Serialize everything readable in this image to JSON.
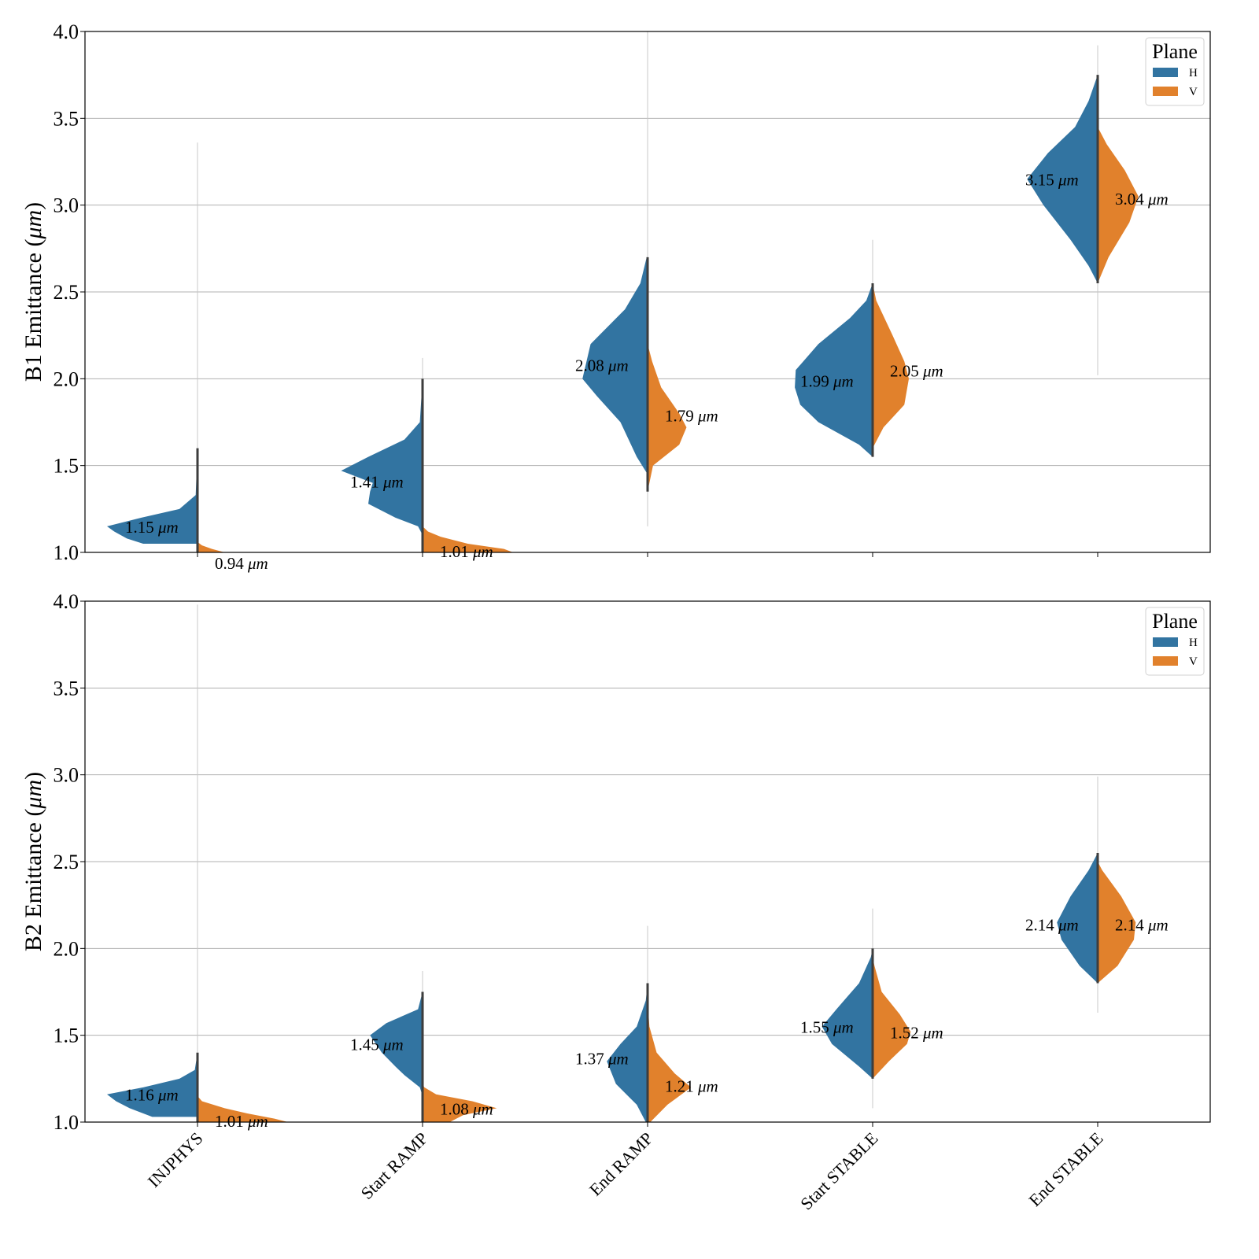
{
  "chart_data": [
    {
      "type": "violin",
      "ylabel_text": "B1 Emittance (",
      "ylabel_unit": "μm",
      "ylabel_close": ")",
      "ylim": [
        1.0,
        4.0
      ],
      "yticks": [
        "1.0",
        "1.5",
        "2.0",
        "2.5",
        "3.0",
        "3.5",
        "4.0"
      ],
      "categories": [
        "INJPHYS",
        "Start RAMP",
        "End RAMP",
        "Start STABLE",
        "End STABLE"
      ],
      "show_xticklabels": false,
      "grid": true,
      "legend": {
        "title": "Plane",
        "entries": [
          "H",
          "V"
        ],
        "placement": "top-right"
      },
      "unit": "μm",
      "series": [
        {
          "name": "H",
          "color": "#3274a1",
          "medians": [
            1.15,
            1.41,
            2.08,
            1.99,
            3.15
          ],
          "median_labels": [
            "1.15",
            "1.41",
            "2.08",
            "1.99",
            "3.15"
          ],
          "ranges": [
            [
              1.05,
              3.36
            ],
            [
              1.1,
              2.12
            ],
            [
              1.15,
              4.0
            ],
            [
              1.55,
              2.8
            ],
            [
              2.02,
              3.92
            ]
          ],
          "density": [
            [
              [
                1.05,
                0.6
              ],
              [
                1.08,
                0.78
              ],
              [
                1.12,
                0.92
              ],
              [
                1.15,
                1.0
              ],
              [
                1.2,
                0.62
              ],
              [
                1.25,
                0.2
              ],
              [
                1.33,
                0.02
              ],
              [
                1.6,
                0.0
              ]
            ],
            [
              [
                1.1,
                0.0
              ],
              [
                1.15,
                0.05
              ],
              [
                1.2,
                0.3
              ],
              [
                1.28,
                0.6
              ],
              [
                1.35,
                0.58
              ],
              [
                1.4,
                0.55
              ],
              [
                1.47,
                0.9
              ],
              [
                1.55,
                0.6
              ],
              [
                1.65,
                0.2
              ],
              [
                1.75,
                0.03
              ],
              [
                2.0,
                0.0
              ]
            ],
            [
              [
                1.45,
                0.0
              ],
              [
                1.55,
                0.12
              ],
              [
                1.75,
                0.3
              ],
              [
                1.9,
                0.56
              ],
              [
                2.0,
                0.72
              ],
              [
                2.2,
                0.63
              ],
              [
                2.4,
                0.25
              ],
              [
                2.55,
                0.08
              ],
              [
                2.7,
                0.01
              ]
            ],
            [
              [
                1.55,
                0.0
              ],
              [
                1.62,
                0.15
              ],
              [
                1.75,
                0.6
              ],
              [
                1.85,
                0.8
              ],
              [
                1.95,
                0.86
              ],
              [
                2.05,
                0.85
              ],
              [
                2.2,
                0.6
              ],
              [
                2.35,
                0.25
              ],
              [
                2.45,
                0.07
              ],
              [
                2.55,
                0.0
              ]
            ],
            [
              [
                2.55,
                0.0
              ],
              [
                2.65,
                0.1
              ],
              [
                2.8,
                0.3
              ],
              [
                3.0,
                0.6
              ],
              [
                3.15,
                0.78
              ],
              [
                3.3,
                0.55
              ],
              [
                3.45,
                0.25
              ],
              [
                3.6,
                0.1
              ],
              [
                3.75,
                0.0
              ]
            ]
          ]
        },
        {
          "name": "V",
          "color": "#e1812c",
          "medians": [
            0.94,
            1.01,
            1.79,
            2.05,
            3.04
          ],
          "median_labels": [
            "0.94",
            "1.01",
            "1.79",
            "2.05",
            "3.04"
          ],
          "ranges": [
            [
              1.0,
              1.04
            ],
            [
              1.0,
              1.14
            ],
            [
              1.33,
              2.1
            ],
            [
              1.6,
              2.55
            ],
            [
              2.5,
              3.45
            ]
          ],
          "density": [
            [
              [
                1.0,
                0.3
              ],
              [
                1.02,
                0.16
              ],
              [
                1.04,
                0.05
              ],
              [
                1.06,
                0.0
              ]
            ],
            [
              [
                1.0,
                1.0
              ],
              [
                1.02,
                0.9
              ],
              [
                1.05,
                0.5
              ],
              [
                1.09,
                0.2
              ],
              [
                1.12,
                0.06
              ],
              [
                1.15,
                0.0
              ]
            ],
            [
              [
                1.35,
                0.0
              ],
              [
                1.5,
                0.06
              ],
              [
                1.62,
                0.35
              ],
              [
                1.72,
                0.43
              ],
              [
                1.8,
                0.35
              ],
              [
                1.95,
                0.15
              ],
              [
                2.1,
                0.05
              ],
              [
                2.2,
                0.0
              ]
            ],
            [
              [
                1.6,
                0.0
              ],
              [
                1.72,
                0.12
              ],
              [
                1.85,
                0.35
              ],
              [
                2.0,
                0.4
              ],
              [
                2.1,
                0.35
              ],
              [
                2.25,
                0.22
              ],
              [
                2.45,
                0.04
              ],
              [
                2.55,
                0.0
              ]
            ],
            [
              [
                2.55,
                0.0
              ],
              [
                2.7,
                0.12
              ],
              [
                2.9,
                0.35
              ],
              [
                3.05,
                0.45
              ],
              [
                3.2,
                0.3
              ],
              [
                3.35,
                0.1
              ],
              [
                3.45,
                0.0
              ]
            ]
          ]
        }
      ]
    },
    {
      "type": "violin",
      "ylabel_text": "B2 Emittance (",
      "ylabel_unit": "μm",
      "ylabel_close": ")",
      "ylim": [
        1.0,
        4.0
      ],
      "yticks": [
        "1.0",
        "1.5",
        "2.0",
        "2.5",
        "3.0",
        "3.5",
        "4.0"
      ],
      "categories": [
        "INJPHYS",
        "Start RAMP",
        "End RAMP",
        "Start STABLE",
        "End STABLE"
      ],
      "show_xticklabels": true,
      "grid": true,
      "legend": {
        "title": "Plane",
        "entries": [
          "H",
          "V"
        ],
        "placement": "top-right"
      },
      "unit": "μm",
      "series": [
        {
          "name": "H",
          "color": "#3274a1",
          "medians": [
            1.16,
            1.45,
            1.37,
            1.55,
            2.14
          ],
          "median_labels": [
            "1.16",
            "1.45",
            "1.37",
            "1.55",
            "2.14"
          ],
          "ranges": [
            [
              1.03,
              3.98
            ],
            [
              1.02,
              1.87
            ],
            [
              1.0,
              2.13
            ],
            [
              1.08,
              2.23
            ],
            [
              1.63,
              2.99
            ]
          ],
          "density": [
            [
              [
                1.03,
                0.5
              ],
              [
                1.08,
                0.75
              ],
              [
                1.12,
                0.9
              ],
              [
                1.16,
                1.0
              ],
              [
                1.2,
                0.6
              ],
              [
                1.25,
                0.2
              ],
              [
                1.3,
                0.03
              ],
              [
                1.4,
                0.0
              ]
            ],
            [
              [
                1.15,
                0.0
              ],
              [
                1.2,
                0.03
              ],
              [
                1.27,
                0.2
              ],
              [
                1.32,
                0.3
              ],
              [
                1.4,
                0.45
              ],
              [
                1.5,
                0.58
              ],
              [
                1.57,
                0.4
              ],
              [
                1.65,
                0.05
              ],
              [
                1.75,
                0.0
              ]
            ],
            [
              [
                1.0,
                0.02
              ],
              [
                1.1,
                0.12
              ],
              [
                1.22,
                0.35
              ],
              [
                1.35,
                0.45
              ],
              [
                1.45,
                0.3
              ],
              [
                1.55,
                0.12
              ],
              [
                1.7,
                0.02
              ],
              [
                1.8,
                0.0
              ]
            ],
            [
              [
                1.25,
                0.0
              ],
              [
                1.32,
                0.15
              ],
              [
                1.45,
                0.45
              ],
              [
                1.55,
                0.56
              ],
              [
                1.65,
                0.4
              ],
              [
                1.8,
                0.15
              ],
              [
                1.95,
                0.02
              ],
              [
                2.0,
                0.0
              ]
            ],
            [
              [
                1.8,
                0.0
              ],
              [
                1.9,
                0.2
              ],
              [
                2.05,
                0.4
              ],
              [
                2.15,
                0.45
              ],
              [
                2.3,
                0.3
              ],
              [
                2.45,
                0.1
              ],
              [
                2.55,
                0.0
              ]
            ]
          ]
        },
        {
          "name": "V",
          "color": "#e1812c",
          "medians": [
            1.01,
            1.08,
            1.21,
            1.52,
            2.14
          ],
          "median_labels": [
            "1.01",
            "1.08",
            "1.21",
            "1.52",
            "2.14"
          ],
          "ranges": [
            [
              1.0,
              1.12
            ],
            [
              1.0,
              1.2
            ],
            [
              1.0,
              1.7
            ],
            [
              1.25,
              1.95
            ],
            [
              1.8,
              2.5
            ]
          ],
          "density": [
            [
              [
                1.0,
                1.0
              ],
              [
                1.02,
                0.85
              ],
              [
                1.05,
                0.55
              ],
              [
                1.08,
                0.3
              ],
              [
                1.12,
                0.05
              ],
              [
                1.15,
                0.0
              ]
            ],
            [
              [
                1.0,
                0.3
              ],
              [
                1.04,
                0.45
              ],
              [
                1.08,
                0.82
              ],
              [
                1.12,
                0.55
              ],
              [
                1.16,
                0.15
              ],
              [
                1.2,
                0.02
              ],
              [
                1.22,
                0.0
              ]
            ],
            [
              [
                1.0,
                0.03
              ],
              [
                1.1,
                0.22
              ],
              [
                1.2,
                0.48
              ],
              [
                1.28,
                0.3
              ],
              [
                1.4,
                0.1
              ],
              [
                1.55,
                0.02
              ],
              [
                1.7,
                0.0
              ]
            ],
            [
              [
                1.25,
                0.0
              ],
              [
                1.35,
                0.18
              ],
              [
                1.45,
                0.38
              ],
              [
                1.52,
                0.42
              ],
              [
                1.62,
                0.3
              ],
              [
                1.75,
                0.1
              ],
              [
                1.9,
                0.02
              ],
              [
                1.95,
                0.0
              ]
            ],
            [
              [
                1.8,
                0.0
              ],
              [
                1.9,
                0.22
              ],
              [
                2.05,
                0.4
              ],
              [
                2.15,
                0.42
              ],
              [
                2.3,
                0.26
              ],
              [
                2.45,
                0.05
              ],
              [
                2.5,
                0.0
              ]
            ]
          ]
        }
      ]
    }
  ]
}
